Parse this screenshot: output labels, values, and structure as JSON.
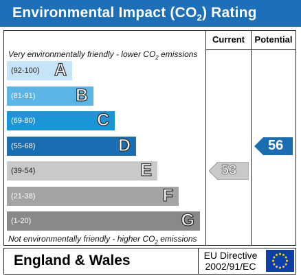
{
  "title": {
    "main": "Environmental Impact (CO",
    "sub": "2",
    "tail": ") Rating"
  },
  "columns": {
    "current": "Current",
    "potential": "Potential"
  },
  "caption_top": {
    "pre": "Very environmentally friendly - lower CO",
    "sub": "2",
    "post": " emissions"
  },
  "caption_bottom": {
    "pre": "Not environmentally friendly - higher CO",
    "sub": "2",
    "post": " emissions"
  },
  "bands": [
    {
      "range": "(92-100)",
      "letter": "A",
      "color": "#c6e3f7"
    },
    {
      "range": "(81-91)",
      "letter": "B",
      "color": "#5ab4e6"
    },
    {
      "range": "(69-80)",
      "letter": "C",
      "color": "#1c95d6"
    },
    {
      "range": "(55-68)",
      "letter": "D",
      "color": "#1b6db2"
    },
    {
      "range": "(39-54)",
      "letter": "E",
      "color": "#c8c9cb"
    },
    {
      "range": "(21-38)",
      "letter": "F",
      "color": "#a3a4a6"
    },
    {
      "range": "(1-20)",
      "letter": "G",
      "color": "#88898b"
    }
  ],
  "current": {
    "value": "53",
    "band": "E",
    "color": "#c8c9cb"
  },
  "potential": {
    "value": "56",
    "band": "D",
    "color": "#1b6db2"
  },
  "footer": {
    "region": "England & Wales",
    "directive_line1": "EU Directive",
    "directive_line2": "2002/91/EC",
    "flag_icon": "eu-flag-icon"
  },
  "colors": {
    "title_bar": "#1c6fb8",
    "eu_blue": "#0e3fa8",
    "eu_star": "#ffd200"
  }
}
